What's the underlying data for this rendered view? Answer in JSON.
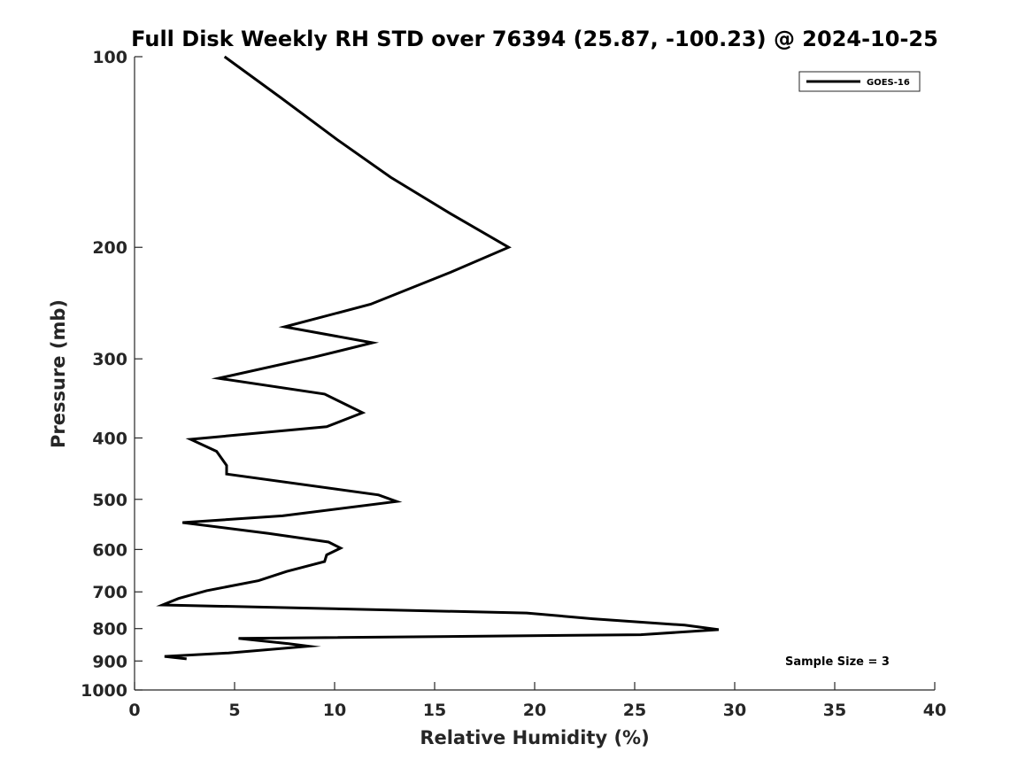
{
  "chart_data": {
    "type": "line",
    "title": "Full Disk Weekly RH STD over 76394 (25.87, -100.23) @ 2024-10-25",
    "xlabel": "Relative Humidity (%)",
    "ylabel": "Pressure (mb)",
    "xlim": [
      0,
      40
    ],
    "ylim": [
      1000,
      100
    ],
    "y_scale": "log",
    "x_ticks": [
      0,
      5,
      10,
      15,
      20,
      25,
      30,
      35,
      40
    ],
    "y_ticks": [
      100,
      200,
      300,
      400,
      500,
      600,
      700,
      800,
      900,
      1000
    ],
    "grid": false,
    "legend_position": "top-right",
    "series": [
      {
        "name": "GOES-16",
        "color": "#000000",
        "x": [
          4.5,
          7.3,
          10.1,
          12.8,
          15.8,
          18.7,
          15.8,
          11.8,
          7.5,
          11.9,
          9.0,
          4.2,
          9.5,
          11.4,
          9.6,
          2.8,
          4.1,
          4.6,
          4.6,
          12.2,
          13.1,
          7.4,
          2.4,
          6.7,
          9.7,
          10.3,
          9.6,
          9.5,
          7.6,
          6.2,
          3.6,
          2.2,
          1.4,
          19.6,
          22.9,
          27.5,
          29.2,
          25.3,
          5.2,
          7.7,
          8.7,
          4.7,
          1.5,
          2.6
        ],
        "y": [
          100,
          116,
          135,
          155,
          177,
          200,
          219,
          246,
          267,
          283,
          298,
          322,
          341,
          365,
          384,
          402,
          420,
          442,
          456,
          492,
          504,
          531,
          544,
          566,
          584,
          597,
          612,
          627,
          650,
          672,
          697,
          717,
          734,
          756,
          772,
          790,
          803,
          818,
          829,
          845,
          853,
          874,
          885,
          893
        ]
      }
    ],
    "annotations": [
      "Sample Size = 3"
    ]
  }
}
